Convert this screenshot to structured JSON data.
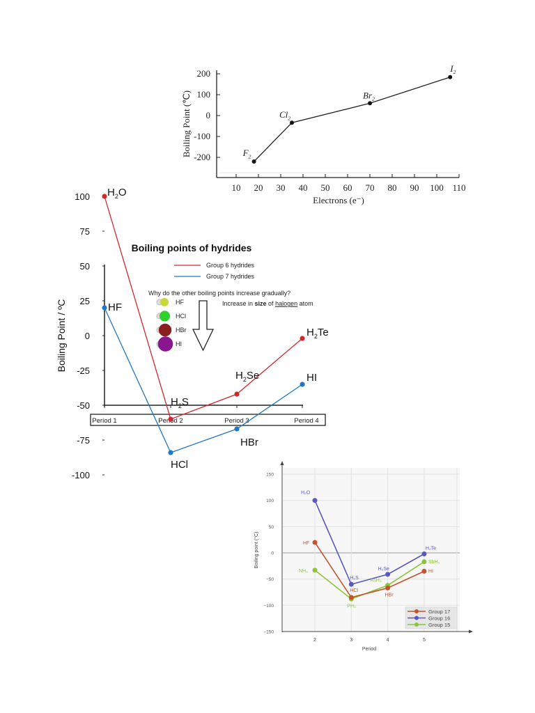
{
  "chart_data": [
    {
      "type": "line",
      "title": "",
      "xlabel": "Electrons (e⁻)",
      "ylabel": "Boiling Point (℃)",
      "xlim": [
        5,
        110
      ],
      "ylim": [
        -270,
        210
      ],
      "xticks": [
        10,
        20,
        30,
        40,
        50,
        60,
        70,
        80,
        90,
        100,
        110
      ],
      "yticks": [
        200,
        100,
        0,
        -100,
        -200
      ],
      "series": [
        {
          "color": "#111111",
          "points": [
            {
              "label": "F",
              "sub": "2",
              "x": 18,
              "y": -220
            },
            {
              "label": "Cl",
              "sub": "2",
              "x": 35,
              "y": -34
            },
            {
              "label": "Br",
              "sub": "2",
              "x": 70,
              "y": 59
            },
            {
              "label": "I",
              "sub": "2",
              "x": 106,
              "y": 184
            }
          ]
        }
      ]
    },
    {
      "type": "line",
      "title": "Boiling points of hydrides",
      "ylabel": "Boiling Point  / ºC",
      "categories": [
        "Period 1",
        "Period 2",
        "Period 3",
        "Period 4"
      ],
      "ylim": [
        -100,
        100
      ],
      "yticks": [
        100,
        75,
        50,
        25,
        0,
        -25,
        -50,
        -75,
        -100
      ],
      "legend": "top-center",
      "series": [
        {
          "name": "Group 6 hydrides",
          "color": "#d0282e",
          "values": [
            100,
            -60,
            -42,
            -2
          ],
          "labels": [
            [
              "H",
              "2",
              "O"
            ],
            [
              "H",
              "2",
              "S"
            ],
            [
              "H",
              "2",
              "Se"
            ],
            [
              "H",
              "2",
              "Te"
            ]
          ]
        },
        {
          "name": "Group 7 hydrides",
          "color": "#1f78c1",
          "values": [
            20,
            -84,
            -67,
            -35
          ],
          "labels": [
            [
              "HF",
              "",
              ""
            ],
            [
              "HCl",
              "",
              ""
            ],
            [
              "HBr",
              "",
              ""
            ],
            [
              "HI",
              "",
              ""
            ]
          ]
        }
      ],
      "annotation": {
        "question": "Why do the other boiling points increase gradually?",
        "note_pre": "Increase in ",
        "note_bold": "size",
        "note_mid": " of ",
        "note_underline": "halogen",
        "note_post": " atom",
        "molecules": [
          {
            "name": "HF",
            "color": "#c8d83a"
          },
          {
            "name": "HCl",
            "color": "#2ed12e"
          },
          {
            "name": "HBr",
            "color": "#8b1f1f"
          },
          {
            "name": "HI",
            "color": "#8a168f"
          }
        ]
      }
    },
    {
      "type": "line",
      "xlabel": "Period",
      "ylabel": "Boiling point (°C)",
      "xlim": [
        1.1,
        5.9
      ],
      "ylim": [
        -150,
        150
      ],
      "xticks": [
        2,
        3,
        4,
        5
      ],
      "yticks": [
        150,
        100,
        50,
        0,
        -50,
        -100,
        -150
      ],
      "grid": true,
      "legend": "bottom-right",
      "series": [
        {
          "name": "Group 17",
          "color": "#c0552b",
          "x": [
            2,
            3,
            4,
            5
          ],
          "values": [
            20,
            -85,
            -67,
            -35
          ],
          "labels": [
            "HF",
            "HCl",
            "HBr",
            "HI"
          ]
        },
        {
          "name": "Group 16",
          "color": "#5858c0",
          "x": [
            2,
            3,
            4,
            5
          ],
          "values": [
            100,
            -60,
            -41,
            -2
          ],
          "labels": [
            "H₂O",
            "H₂S",
            "H₂Se",
            "H₂Te"
          ]
        },
        {
          "name": "Group 15",
          "color": "#8cc43c",
          "x": [
            2,
            3,
            4,
            5
          ],
          "values": [
            -33,
            -88,
            -62,
            -17
          ],
          "labels": [
            "NH₃",
            "PH₃",
            "AsH₃",
            "SbH₃"
          ]
        }
      ]
    }
  ]
}
